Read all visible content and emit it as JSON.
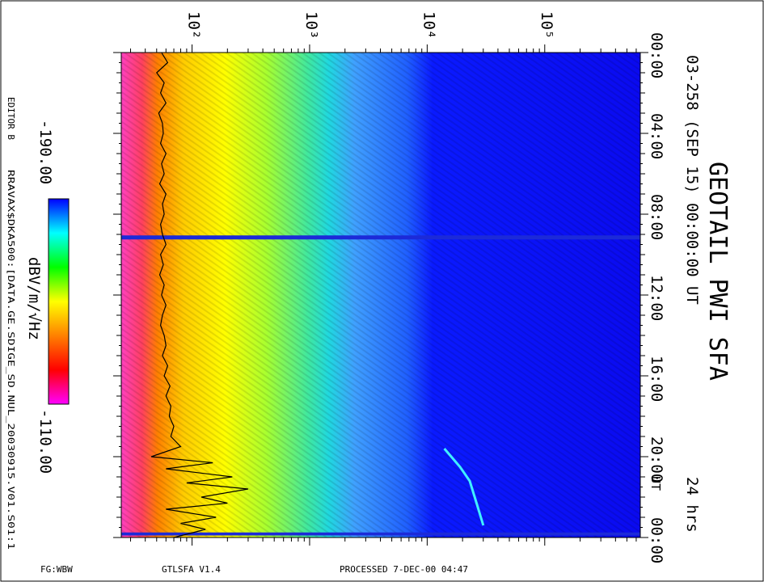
{
  "title": "GEOTAIL PWI SFA",
  "subtitle": "03-258 (SEP 15) 00:00:00 UT",
  "duration": "24 hrs",
  "editor": "EDITOR B",
  "file_path": "RRAVAX$DKA500:[DATA.GE.SDIGE_SD.NUL_20030915.V01.S01:1",
  "footer": {
    "left": "FG:WBW",
    "version": "GTLSFA   V1.4",
    "processed": "PROCESSED   7-DEC-00   04:47"
  },
  "colorbar": {
    "min_label": "-190.00",
    "max_label": "-110.00",
    "unit_label": "dBV/m/√Hz",
    "stops": [
      "#0000ff",
      "#00ffff",
      "#00ff00",
      "#ffff00",
      "#ff8000",
      "#ff0000",
      "#ff00ff"
    ]
  },
  "chart_data": {
    "type": "heatmap",
    "x_axis": {
      "scale": "log",
      "unit": "Hz",
      "range": [
        25,
        650000
      ],
      "tick_labels": [
        {
          "value": 100,
          "label": "10²"
        },
        {
          "value": 1000,
          "label": "10³"
        },
        {
          "value": 10000,
          "label": "10⁴"
        },
        {
          "value": 100000,
          "label": "10⁵"
        }
      ]
    },
    "y_axis": {
      "unit": "UT",
      "range_hours": [
        0,
        24
      ],
      "tick_labels": [
        "00:00",
        "04:00",
        "08:00",
        "12:00",
        "16:00",
        "20:00",
        "00:00"
      ],
      "tick_hours": [
        0,
        4,
        8,
        12,
        16,
        20,
        24
      ],
      "right_bottom_prefix": "UT"
    },
    "frequency_bands": [
      {
        "f_min": 25,
        "f_max": 45,
        "hue": "pink-red"
      },
      {
        "f_min": 45,
        "f_max": 300,
        "hue": "yellow-orange"
      },
      {
        "f_min": 300,
        "f_max": 3000,
        "hue": "green-yellow"
      },
      {
        "f_min": 3000,
        "f_max": 12000,
        "hue": "cyan-blue"
      },
      {
        "f_min": 12000,
        "f_max": 650000,
        "hue": "blue"
      }
    ],
    "data_gaps_hours": [
      [
        9.05,
        9.25
      ],
      [
        23.75,
        23.9
      ]
    ],
    "emission_trace": {
      "description_points": [
        [
          19.6,
          14000
        ],
        [
          20.5,
          19000
        ],
        [
          21.2,
          23000
        ],
        [
          22.2,
          26000
        ],
        [
          23.4,
          30000
        ]
      ]
    },
    "wave_trace_hours_to_freq": [
      [
        0.0,
        55
      ],
      [
        0.5,
        62
      ],
      [
        1.0,
        50
      ],
      [
        1.5,
        58
      ],
      [
        2.0,
        54
      ],
      [
        2.5,
        60
      ],
      [
        3.0,
        52
      ],
      [
        3.5,
        56
      ],
      [
        4.0,
        57
      ],
      [
        4.5,
        54
      ],
      [
        5.0,
        60
      ],
      [
        5.5,
        55
      ],
      [
        6.0,
        58
      ],
      [
        6.5,
        53
      ],
      [
        7.0,
        60
      ],
      [
        7.5,
        56
      ],
      [
        8.0,
        58
      ],
      [
        8.5,
        54
      ],
      [
        9.0,
        56
      ],
      [
        9.5,
        60
      ],
      [
        10.0,
        54
      ],
      [
        10.5,
        57
      ],
      [
        11.0,
        53
      ],
      [
        11.5,
        58
      ],
      [
        12.0,
        55
      ],
      [
        12.5,
        60
      ],
      [
        13.0,
        56
      ],
      [
        13.5,
        54
      ],
      [
        14.0,
        58
      ],
      [
        14.5,
        60
      ],
      [
        15.0,
        56
      ],
      [
        15.5,
        62
      ],
      [
        16.0,
        58
      ],
      [
        16.5,
        65
      ],
      [
        17.0,
        60
      ],
      [
        17.5,
        66
      ],
      [
        18.0,
        64
      ],
      [
        18.5,
        70
      ],
      [
        19.0,
        66
      ],
      [
        19.5,
        80
      ],
      [
        20.0,
        45
      ],
      [
        20.3,
        150
      ],
      [
        20.6,
        60
      ],
      [
        21.0,
        220
      ],
      [
        21.3,
        90
      ],
      [
        21.6,
        300
      ],
      [
        22.0,
        120
      ],
      [
        22.3,
        200
      ],
      [
        22.6,
        60
      ],
      [
        23.0,
        160
      ],
      [
        23.3,
        80
      ],
      [
        23.6,
        130
      ],
      [
        24.0,
        70
      ]
    ]
  }
}
